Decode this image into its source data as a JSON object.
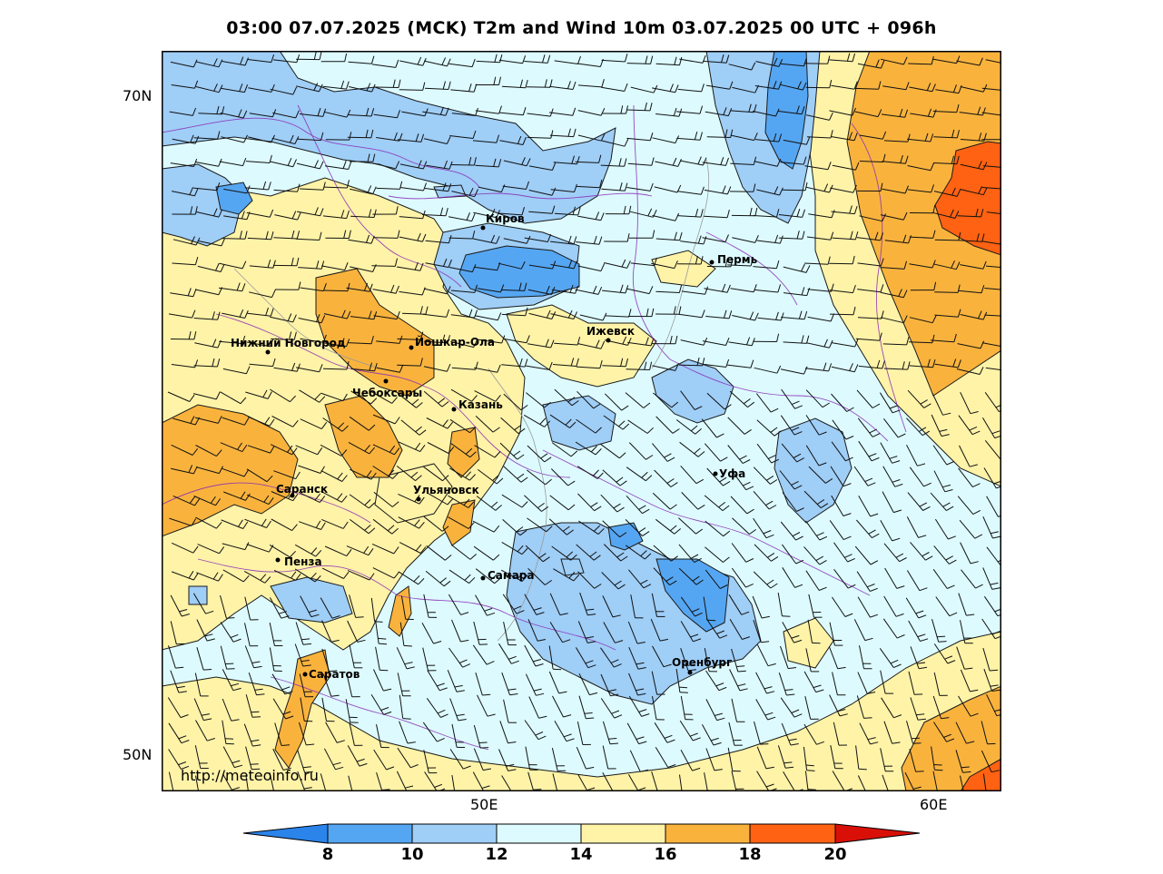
{
  "title": "03:00 07.07.2025 (MCK) T2m and Wind 10m 03.07.2025 00 UTC + 096h",
  "watermark": "http://meteoinfo.ru",
  "lat_labels": [
    "70N",
    "50N"
  ],
  "lon_labels": [
    "50E",
    "60E"
  ],
  "cities": [
    {
      "name": "Киров"
    },
    {
      "name": "Пермь"
    },
    {
      "name": "Нижний Новгород"
    },
    {
      "name": "Йошкар-Ола"
    },
    {
      "name": "Ижевск"
    },
    {
      "name": "Чебоксары"
    },
    {
      "name": "Казань"
    },
    {
      "name": "Уфа"
    },
    {
      "name": "Саранск"
    },
    {
      "name": "Ульяновск"
    },
    {
      "name": "Пенза"
    },
    {
      "name": "Самара"
    },
    {
      "name": "Оренбург"
    },
    {
      "name": "Саратов"
    }
  ],
  "colorbar": {
    "ticks": [
      "8",
      "10",
      "12",
      "14",
      "16",
      "18",
      "20"
    ],
    "colors": {
      "lt8": "#2a84ea",
      "8-10": "#55a6f2",
      "10-12": "#9fcef7",
      "12-14": "#ddfbff",
      "14-16": "#fff3a8",
      "16-18": "#f9b33d",
      "18-20": "#ff6212",
      "gt20": "#d91008"
    }
  }
}
